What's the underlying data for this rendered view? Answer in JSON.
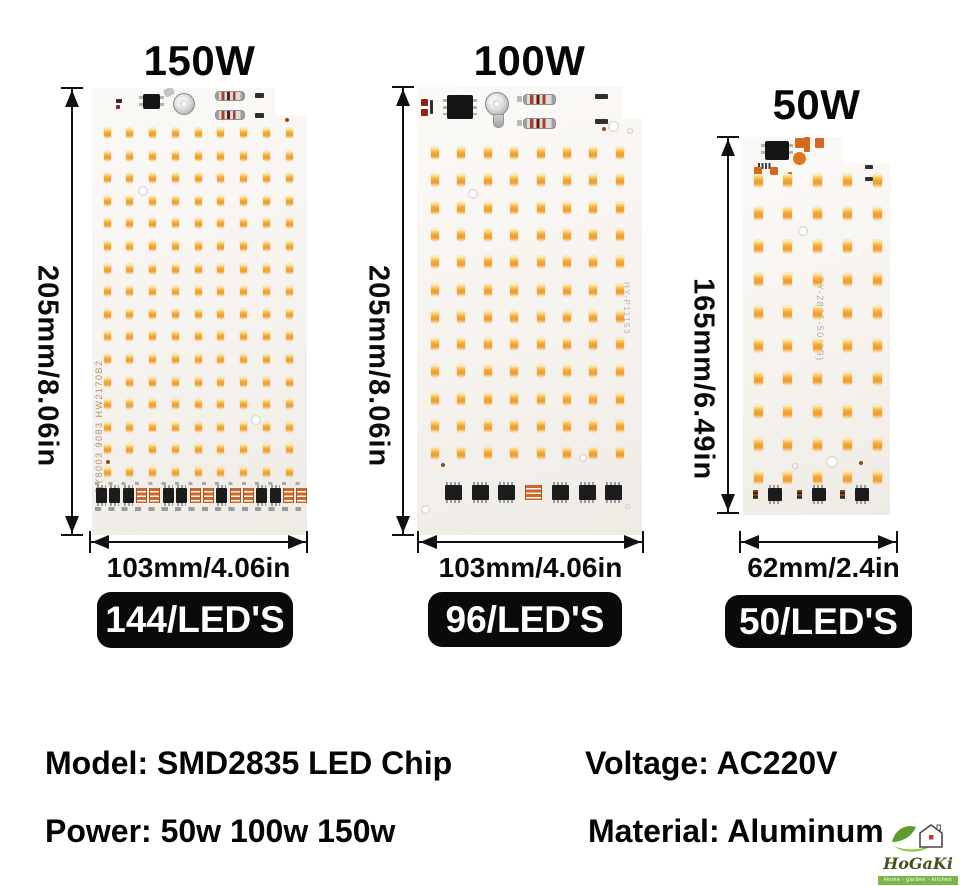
{
  "panels": [
    {
      "power": "150W",
      "height_dim": "205mm/8.06in",
      "width_dim": "103mm/4.06in",
      "leds": "144/LED'S",
      "led_cols": 9,
      "led_rows": 16,
      "silkscreen": "DY8003 9083 HW2170B2"
    },
    {
      "power": "100W",
      "height_dim": "205mm/8.06in",
      "width_dim": "103mm/4.06in",
      "leds": "96/LED'S",
      "led_cols": 8,
      "led_rows": 12,
      "silkscreen": "HY-P11153"
    },
    {
      "power": "50W",
      "height_dim": "165mm/6.49in",
      "width_dim": "62mm/2.4in",
      "leds": "50/LED'S",
      "led_cols": 5,
      "led_rows": 10,
      "silkscreen": "TY-2835-50(2B)"
    }
  ],
  "specs": {
    "model": "Model: SMD2835 LED Chip",
    "power": "Power: 50w 100w 150w",
    "voltage": "Voltage: AC220V",
    "material": "Material: Aluminum"
  },
  "logo": {
    "brand": "HoGaKi",
    "tagline": "Home - garden - kitchen"
  },
  "colors": {
    "led_amber": "#f2a43a",
    "badge_bg": "#0a0a0a",
    "pcb_white": "#f6f3ef",
    "logo_green": "#7ab648",
    "logo_text": "#4c4f22"
  }
}
